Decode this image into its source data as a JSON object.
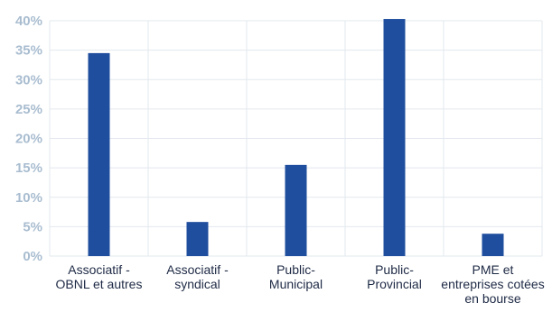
{
  "chart_data": {
    "type": "bar",
    "categories": [
      [
        "Associatif -",
        "OBNL et autres"
      ],
      [
        "Associatif -",
        "syndical"
      ],
      [
        "Public-",
        "Municipal"
      ],
      [
        "Public-",
        "Provincial"
      ],
      [
        "PME et",
        "entreprises cotées",
        "en bourse"
      ]
    ],
    "values": [
      34.5,
      5.8,
      15.5,
      40.3,
      3.8
    ],
    "ylim": [
      0,
      40
    ],
    "yticks": [
      "0%",
      "5%",
      "10%",
      "15%",
      "20%",
      "25%",
      "30%",
      "35%",
      "40%"
    ],
    "grid": true,
    "bar_color": "#1f4e9e",
    "grid_color": "#e3e8ee",
    "tick_color": "#a9bdd0",
    "label_color": "#1e2a45"
  }
}
